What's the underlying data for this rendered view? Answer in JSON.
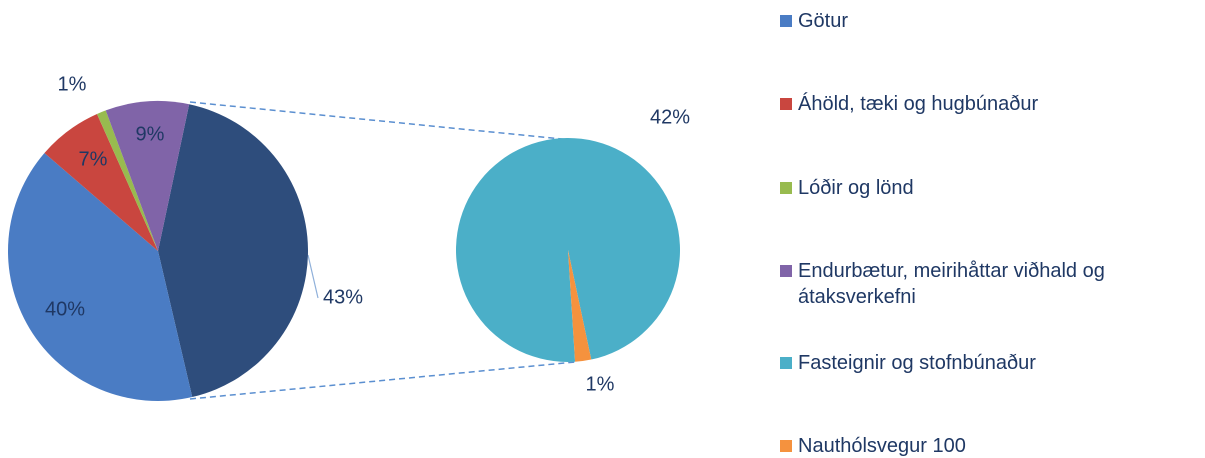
{
  "chart_data": {
    "type": "pie-of-pie",
    "series": [
      {
        "name": "Götur",
        "color": "#4a7cc4",
        "value": 40,
        "value_label": "40%"
      },
      {
        "name": "Áhöld, tæki og hugbúnaður",
        "color": "#c9463f",
        "value": 7,
        "value_label": "7%"
      },
      {
        "name": "Lóðir og lönd",
        "color": "#98bb4f",
        "value": 1,
        "value_label": "1%"
      },
      {
        "name": "Endurbætur, meirihåttar viðhald og átaksverkefni",
        "color": "#8064a8",
        "value": 9,
        "value_label": "9%"
      }
    ],
    "secondary": {
      "value": 43,
      "value_label": "43%",
      "color": "#2e4d7c",
      "series": [
        {
          "name": "Fasteignir og stofnbúnaður",
          "color": "#4bafc8",
          "value": 42,
          "value_label": "42%"
        },
        {
          "name": "Nauthólsvegur 100",
          "color": "#f5923e",
          "value": 1,
          "value_label": "1%"
        }
      ]
    }
  }
}
